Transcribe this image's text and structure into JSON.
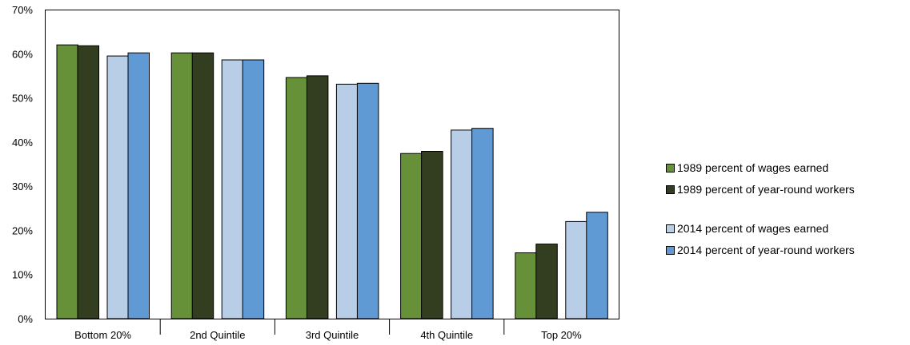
{
  "chart_data": {
    "type": "bar",
    "categories": [
      "Bottom 20%",
      "2nd Quintile",
      "3rd Quintile",
      "4th Quintile",
      "Top 20%"
    ],
    "series": [
      {
        "name": "1989 percent of wages earned",
        "color": "#669138",
        "values": [
          62.0,
          60.2,
          54.6,
          37.4,
          14.9
        ]
      },
      {
        "name": "1989 percent of year-round workers",
        "color": "#333d1f",
        "values": [
          61.8,
          60.2,
          55.0,
          37.9,
          16.9
        ]
      },
      {
        "name": "2014 percent of wages earned",
        "color": "#b8cde6",
        "values": [
          59.5,
          58.6,
          53.1,
          42.7,
          22.0
        ]
      },
      {
        "name": "2014 percent of year-round workers",
        "color": "#5f9ad4",
        "values": [
          60.2,
          58.6,
          53.3,
          43.1,
          24.1
        ]
      }
    ],
    "y_ticks": [
      "0%",
      "10%",
      "20%",
      "30%",
      "40%",
      "50%",
      "60%",
      "70%"
    ],
    "ylim": [
      0,
      70
    ],
    "y_unit": "%",
    "grid": false,
    "legend_position": "right"
  }
}
